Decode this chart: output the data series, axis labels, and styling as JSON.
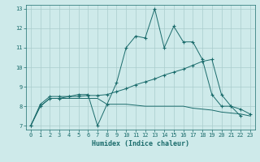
{
  "xlabel": "Humidex (Indice chaleur)",
  "bg_color": "#ceeaea",
  "grid_color": "#aacccc",
  "line_color": "#1a6b6b",
  "xlim_min": -0.5,
  "xlim_max": 23.5,
  "ylim_min": 6.8,
  "ylim_max": 13.2,
  "xticks": [
    0,
    1,
    2,
    3,
    4,
    5,
    6,
    7,
    8,
    9,
    10,
    11,
    12,
    13,
    14,
    15,
    16,
    17,
    18,
    19,
    20,
    21,
    22,
    23
  ],
  "yticks": [
    7,
    8,
    9,
    10,
    11,
    12,
    13
  ],
  "line1_x": [
    0,
    1,
    2,
    3,
    4,
    5,
    6,
    7,
    8,
    9,
    10,
    11,
    12,
    13,
    14,
    15,
    16,
    17,
    18,
    19,
    20,
    21,
    22
  ],
  "line1_y": [
    7.0,
    8.1,
    8.5,
    8.5,
    8.5,
    8.6,
    8.6,
    7.0,
    8.1,
    9.2,
    11.0,
    11.6,
    11.5,
    13.0,
    11.0,
    12.1,
    11.3,
    11.3,
    10.4,
    8.6,
    8.0,
    8.0,
    7.5
  ],
  "line2_x": [
    0,
    1,
    2,
    3,
    4,
    5,
    6,
    7,
    8,
    9,
    10,
    11,
    12,
    13,
    14,
    15,
    16,
    17,
    18,
    19,
    20,
    21,
    22,
    23
  ],
  "line2_y": [
    7.0,
    8.0,
    8.4,
    8.4,
    8.5,
    8.5,
    8.55,
    8.55,
    8.6,
    8.75,
    8.9,
    9.1,
    9.25,
    9.4,
    9.6,
    9.75,
    9.9,
    10.1,
    10.3,
    10.4,
    8.6,
    8.0,
    7.85,
    7.6
  ],
  "line3_x": [
    0,
    1,
    2,
    3,
    4,
    5,
    6,
    7,
    8,
    9,
    10,
    11,
    12,
    13,
    14,
    15,
    16,
    17,
    18,
    19,
    20,
    21,
    22,
    23
  ],
  "line3_y": [
    7.0,
    8.0,
    8.4,
    8.4,
    8.4,
    8.4,
    8.4,
    8.4,
    8.1,
    8.1,
    8.1,
    8.05,
    8.0,
    8.0,
    8.0,
    8.0,
    8.0,
    7.9,
    7.85,
    7.8,
    7.7,
    7.65,
    7.6,
    7.5
  ]
}
